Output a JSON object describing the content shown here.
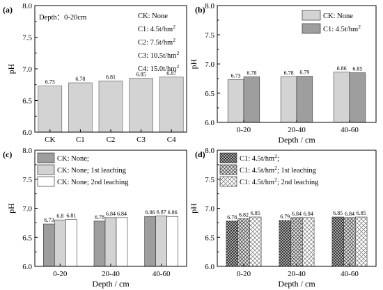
{
  "patterns": {
    "gray_dark": "#9e9e9e",
    "gray_light": "#d3d3d3",
    "white": "#ffffff",
    "cross_dark": "crosshatch-dense",
    "cross_mid": "crosshatch-medium",
    "cross_light": "crosshatch-light"
  },
  "chart_data": [
    {
      "type": "bar",
      "panel_label": "(a)",
      "annotation": "Depth：0-20cm",
      "categories": [
        "CK",
        "C1",
        "C2",
        "C3",
        "C4"
      ],
      "values": [
        6.73,
        6.78,
        6.81,
        6.85,
        6.87
      ],
      "value_labels": [
        "6.73",
        "6.78",
        "6.81",
        "6.85",
        "6.87"
      ],
      "ylabel": "pH",
      "xlabel": "",
      "ylim": [
        6.0,
        8.0
      ],
      "yticks": [
        "6.0",
        "6.5",
        "7.0",
        "7.5",
        "8.0"
      ],
      "bar_color": "#d3d3d3",
      "legend_text": [
        {
          "main": "CK: None",
          "sup": ""
        },
        {
          "main": "C1: 4.5t/hm",
          "sup": "2"
        },
        {
          "main": "C2: 7.5t/hm",
          "sup": "2"
        },
        {
          "main": "C3: 10.5t/hm",
          "sup": "2"
        },
        {
          "main": "C4: 15.0t/hm",
          "sup": "2"
        }
      ]
    },
    {
      "type": "bar",
      "panel_label": "(b)",
      "categories": [
        "0-20",
        "20-40",
        "40-60"
      ],
      "xlabel": "Depth / cm",
      "ylabel": "pH",
      "ylim": [
        6.0,
        8.0
      ],
      "yticks": [
        "6.0",
        "6.5",
        "7.0",
        "7.5",
        "8.0"
      ],
      "series": [
        {
          "name": "CK: None",
          "sup": "",
          "values": [
            6.73,
            6.78,
            6.86
          ],
          "value_labels": [
            "6.73",
            "6.78",
            "6.86"
          ],
          "fill": "gray_light"
        },
        {
          "name": "C1: 4.5t/hm",
          "sup": "2",
          "values": [
            6.78,
            6.79,
            6.85
          ],
          "value_labels": [
            "6.78",
            "6.79",
            "6.85"
          ],
          "fill": "gray_dark"
        }
      ]
    },
    {
      "type": "bar",
      "panel_label": "(c)",
      "categories": [
        "0-20",
        "20-40",
        "40-60"
      ],
      "xlabel": "Depth / cm",
      "ylabel": "pH",
      "ylim": [
        6.0,
        8.0
      ],
      "yticks": [
        "6.0",
        "6.5",
        "7.0",
        "7.5",
        "8.0"
      ],
      "series": [
        {
          "name": "CK: None;",
          "sup": "",
          "values": [
            6.73,
            6.78,
            6.86
          ],
          "value_labels": [
            "6.73",
            "6.78",
            "6.86"
          ],
          "fill": "gray_dark"
        },
        {
          "name": "CK: None; 1st leaching",
          "sup": "",
          "values": [
            6.8,
            6.84,
            6.87
          ],
          "value_labels": [
            "6.8",
            "6.84",
            "6.87"
          ],
          "fill": "gray_light"
        },
        {
          "name": "CK: None; 2nd leaching",
          "sup": "",
          "values": [
            6.81,
            6.84,
            6.86
          ],
          "value_labels": [
            "6.81",
            "6.84",
            "6.86"
          ],
          "fill": "white"
        }
      ]
    },
    {
      "type": "bar",
      "panel_label": "(d)",
      "categories": [
        "0-20",
        "20-40",
        "40-60"
      ],
      "xlabel": "Depth / cm",
      "ylabel": "pH",
      "ylim": [
        6.0,
        8.0
      ],
      "yticks": [
        "6.0",
        "6.5",
        "7.0",
        "7.5",
        "8.0"
      ],
      "series": [
        {
          "name": "C1: 4.5t/hm",
          "sup": "2",
          "suffix": ";",
          "values": [
            6.78,
            6.79,
            6.85
          ],
          "value_labels": [
            "6.78",
            "6.79",
            "6.85"
          ],
          "fill": "cross_dark"
        },
        {
          "name": "C1: 4.5t/hm",
          "sup": "2",
          "suffix": "; 1st leaching",
          "values": [
            6.82,
            6.84,
            6.84
          ],
          "value_labels": [
            "6.82",
            "6.84",
            "6.84"
          ],
          "fill": "cross_mid"
        },
        {
          "name": "C1: 4.5t/hm",
          "sup": "2",
          "suffix": "; 2nd leaching",
          "values": [
            6.85,
            6.84,
            6.85
          ],
          "value_labels": [
            "6.85",
            "6.84",
            "6.85"
          ],
          "fill": "cross_light"
        }
      ]
    }
  ]
}
